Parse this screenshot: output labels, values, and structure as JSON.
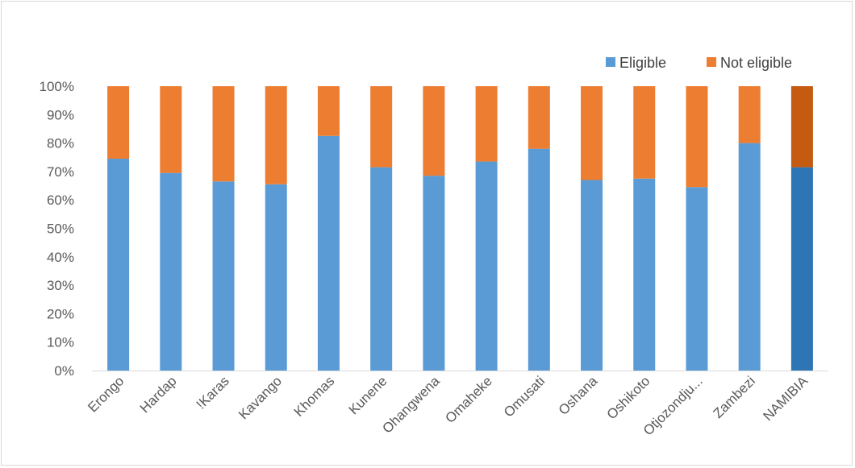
{
  "chart_data": {
    "type": "bar",
    "stacked": true,
    "percent_stacked": true,
    "categories": [
      "Erongo",
      "Hardap",
      "!Karas",
      "Kavango",
      "Khomas",
      "Kunene",
      "Ohangwena",
      "Omaheke",
      "Omusati",
      "Oshana",
      "Oshikoto",
      "Otjozondju...",
      "Zambezi",
      "NAMIBIA"
    ],
    "series": [
      {
        "name": "Eligible",
        "color": "#5b9bd5",
        "highlight_color": "#2e75b6",
        "values": [
          74.5,
          69.5,
          66.5,
          65.5,
          82.5,
          71.5,
          68.5,
          73.5,
          78,
          67,
          67.5,
          64.5,
          80,
          71.5
        ]
      },
      {
        "name": "Not eligible",
        "color": "#ed7d31",
        "highlight_color": "#c55a11",
        "values": [
          25.5,
          30.5,
          33.5,
          34.5,
          17.5,
          28.5,
          31.5,
          26.5,
          22,
          33,
          32.5,
          35.5,
          20,
          28.5
        ]
      }
    ],
    "highlighted_category": "NAMIBIA",
    "ylim": [
      0,
      100
    ],
    "yticks": [
      "0%",
      "10%",
      "20%",
      "30%",
      "40%",
      "50%",
      "60%",
      "70%",
      "80%",
      "90%",
      "100%"
    ],
    "grid": false,
    "legend_position": "top-right",
    "title": "",
    "xlabel": "",
    "ylabel": ""
  }
}
